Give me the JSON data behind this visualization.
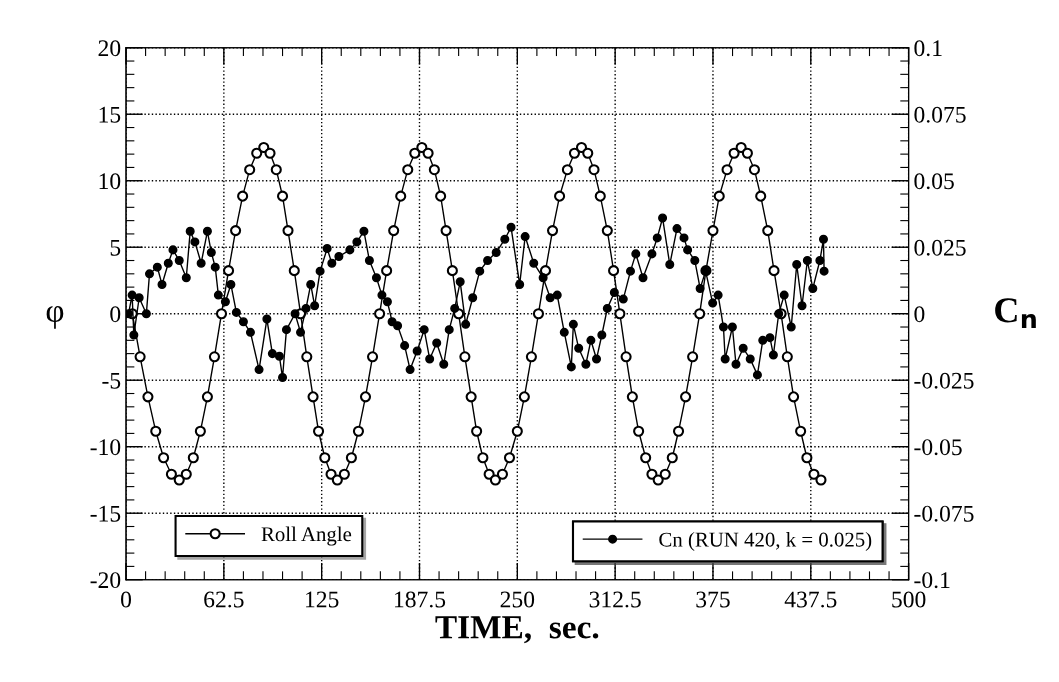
{
  "chart_data": {
    "type": "line",
    "xlabel": "TIME,  sec.",
    "ylabel": "φ",
    "y2label": "C$_{n}$",
    "xlim": [
      0,
      500
    ],
    "xticks": [
      0,
      62.5,
      125,
      187.5,
      250,
      312.5,
      375,
      437.5,
      500
    ],
    "ylim": [
      -20,
      20
    ],
    "yticks": [
      -20,
      -15,
      -10,
      -5,
      0,
      5,
      10,
      15,
      20
    ],
    "y2lim": [
      -0.1,
      0.1
    ],
    "y2ticks": [
      -0.1,
      -0.075,
      -0.05,
      -0.025,
      0,
      0.025,
      0.05,
      0.075,
      0.1
    ],
    "grid": true,
    "legend": "bottom",
    "marker": "circle",
    "line_style": "solid",
    "series": [
      {
        "name": "Roll Angle",
        "color": "#000000",
        "x": [
          4,
          9,
          14,
          19,
          24,
          29,
          34,
          38.5,
          43,
          47.5,
          52,
          56.5,
          61,
          65.5,
          70,
          74.5,
          79,
          83.5,
          88,
          92,
          96,
          100,
          103.5,
          107.5,
          111.5,
          115.5,
          119.5,
          123,
          127,
          131,
          135,
          139.5,
          144,
          148.5,
          153,
          157.5,
          162,
          166.5,
          171,
          175.5,
          180,
          184.5,
          189,
          193,
          197,
          201,
          204.5,
          208.5,
          212.5,
          216.5,
          220.5,
          224,
          228,
          232,
          236,
          240.5,
          245,
          250,
          254.5,
          259,
          263.5,
          268,
          272.5,
          277,
          282,
          286.5,
          291,
          295,
          299,
          303,
          307.5,
          311.5,
          315.5,
          319.5,
          323.5,
          327.5,
          332,
          336,
          340,
          344.5,
          349,
          353,
          357.5,
          362,
          366.5,
          370.5,
          375,
          379,
          384,
          388.5,
          393,
          397,
          401.5,
          405.5,
          410,
          414,
          418.5,
          422.5,
          426.5,
          431,
          435,
          439.5,
          444
        ],
        "values": [
          0,
          -3.24,
          -6.25,
          -8.84,
          -10.83,
          -12.07,
          -12.5,
          -12.07,
          -10.83,
          -8.84,
          -6.25,
          -3.24,
          0,
          3.24,
          6.25,
          8.84,
          10.83,
          12.07,
          12.5,
          12.07,
          10.83,
          8.84,
          6.25,
          3.24,
          0,
          -3.24,
          -6.25,
          -8.84,
          -10.83,
          -12.07,
          -12.5,
          -12.07,
          -10.83,
          -8.84,
          -6.25,
          -3.24,
          0,
          3.24,
          6.25,
          8.84,
          10.83,
          12.07,
          12.5,
          12.07,
          10.83,
          8.84,
          6.25,
          3.24,
          0,
          -3.24,
          -6.25,
          -8.84,
          -10.83,
          -12.07,
          -12.5,
          -12.07,
          -10.83,
          -8.84,
          -6.25,
          -3.24,
          0,
          3.24,
          6.25,
          8.84,
          10.83,
          12.07,
          12.5,
          12.07,
          10.83,
          8.84,
          6.25,
          3.24,
          0,
          -3.24,
          -6.25,
          -8.84,
          -10.83,
          -12.07,
          -12.5,
          -12.07,
          -10.83,
          -8.84,
          -6.25,
          -3.24,
          0,
          3.24,
          6.25,
          8.84,
          10.83,
          12.07,
          12.5,
          12.07,
          10.83,
          8.84,
          6.25,
          3.24,
          0,
          -3.24,
          -6.25,
          -8.84,
          -10.83,
          -12.07,
          -12.5
        ]
      },
      {
        "name": "Cn (RUN 420, k = 0.025)",
        "color": "#000000",
        "axis": "y2",
        "x": [
          1.6,
          3.9,
          5,
          8.4,
          13,
          15,
          20,
          23,
          27,
          30,
          34,
          38.5,
          41,
          44,
          48,
          52,
          54.5,
          57,
          59,
          63.5,
          67,
          70.5,
          75,
          79.5,
          85,
          90,
          93.5,
          98,
          100,
          102.5,
          108,
          111.5,
          115,
          118,
          120.5,
          124,
          128.5,
          131.5,
          136,
          143,
          147.5,
          152,
          155.5,
          160,
          163.5,
          167,
          170,
          173.5,
          178,
          181.5,
          186,
          190.5,
          194,
          198.5,
          203,
          206.5,
          210,
          213.5,
          217,
          221.5,
          226,
          231,
          236.5,
          242,
          246,
          251.5,
          255,
          260.5,
          266.5,
          271,
          275.5,
          280,
          284.5,
          285.8,
          289.2,
          293.8,
          297,
          300.6,
          304,
          307.5,
          312,
          317.7,
          322.3,
          325.7,
          330.3,
          336,
          339.4,
          342.8,
          347.4,
          352,
          356.5,
          358.8,
          363.4,
          366.8,
          370.3,
          374.8,
          378.3,
          381.7,
          382.8,
          387.4,
          389.7,
          394.3,
          398.8,
          403.4,
          406.8,
          411.4,
          413.6,
          417,
          420.5,
          425,
          428.5,
          431.9,
          435.3,
          438.8,
          443.3,
          445.6,
          446
        ],
        "values": [
          0,
          0.007,
          -0.008,
          0.006,
          0,
          0.015,
          0.0175,
          0.011,
          0.019,
          0.024,
          0.02,
          0.0135,
          0.031,
          0.027,
          0.019,
          0.031,
          0.023,
          0.0175,
          0.007,
          0.0045,
          0.011,
          0.0005,
          -0.003,
          -0.007,
          -0.021,
          -0.002,
          -0.015,
          -0.016,
          -0.024,
          -0.006,
          0,
          -0.007,
          0.002,
          0.011,
          0.003,
          0.016,
          0.0245,
          0.019,
          0.0215,
          0.024,
          0.027,
          0.031,
          0.02,
          0.0135,
          0.007,
          0.0045,
          -0.003,
          -0.0045,
          -0.012,
          -0.021,
          -0.014,
          -0.006,
          -0.017,
          -0.011,
          -0.019,
          -0.006,
          0.002,
          0.012,
          -0.004,
          0.006,
          0.016,
          0.02,
          0.023,
          0.028,
          0.0325,
          0.011,
          0.029,
          0.019,
          0.0135,
          0.006,
          0.007,
          -0.007,
          -0.02,
          -0.004,
          -0.013,
          -0.019,
          -0.01,
          -0.017,
          -0.008,
          0.002,
          0.008,
          0.0055,
          0.016,
          0.0225,
          0.0135,
          0.0225,
          0.0285,
          0.036,
          0.0185,
          0.032,
          0.0285,
          0.024,
          0.02,
          0.0095,
          0.016,
          0.004,
          0.007,
          -0.005,
          -0.017,
          -0.005,
          -0.019,
          -0.013,
          -0.017,
          -0.023,
          -0.01,
          -0.009,
          -0.0155,
          0,
          0.007,
          -0.005,
          0.0185,
          0.003,
          0.02,
          0.0095,
          0.02,
          0.028,
          0.016
        ]
      }
    ]
  }
}
